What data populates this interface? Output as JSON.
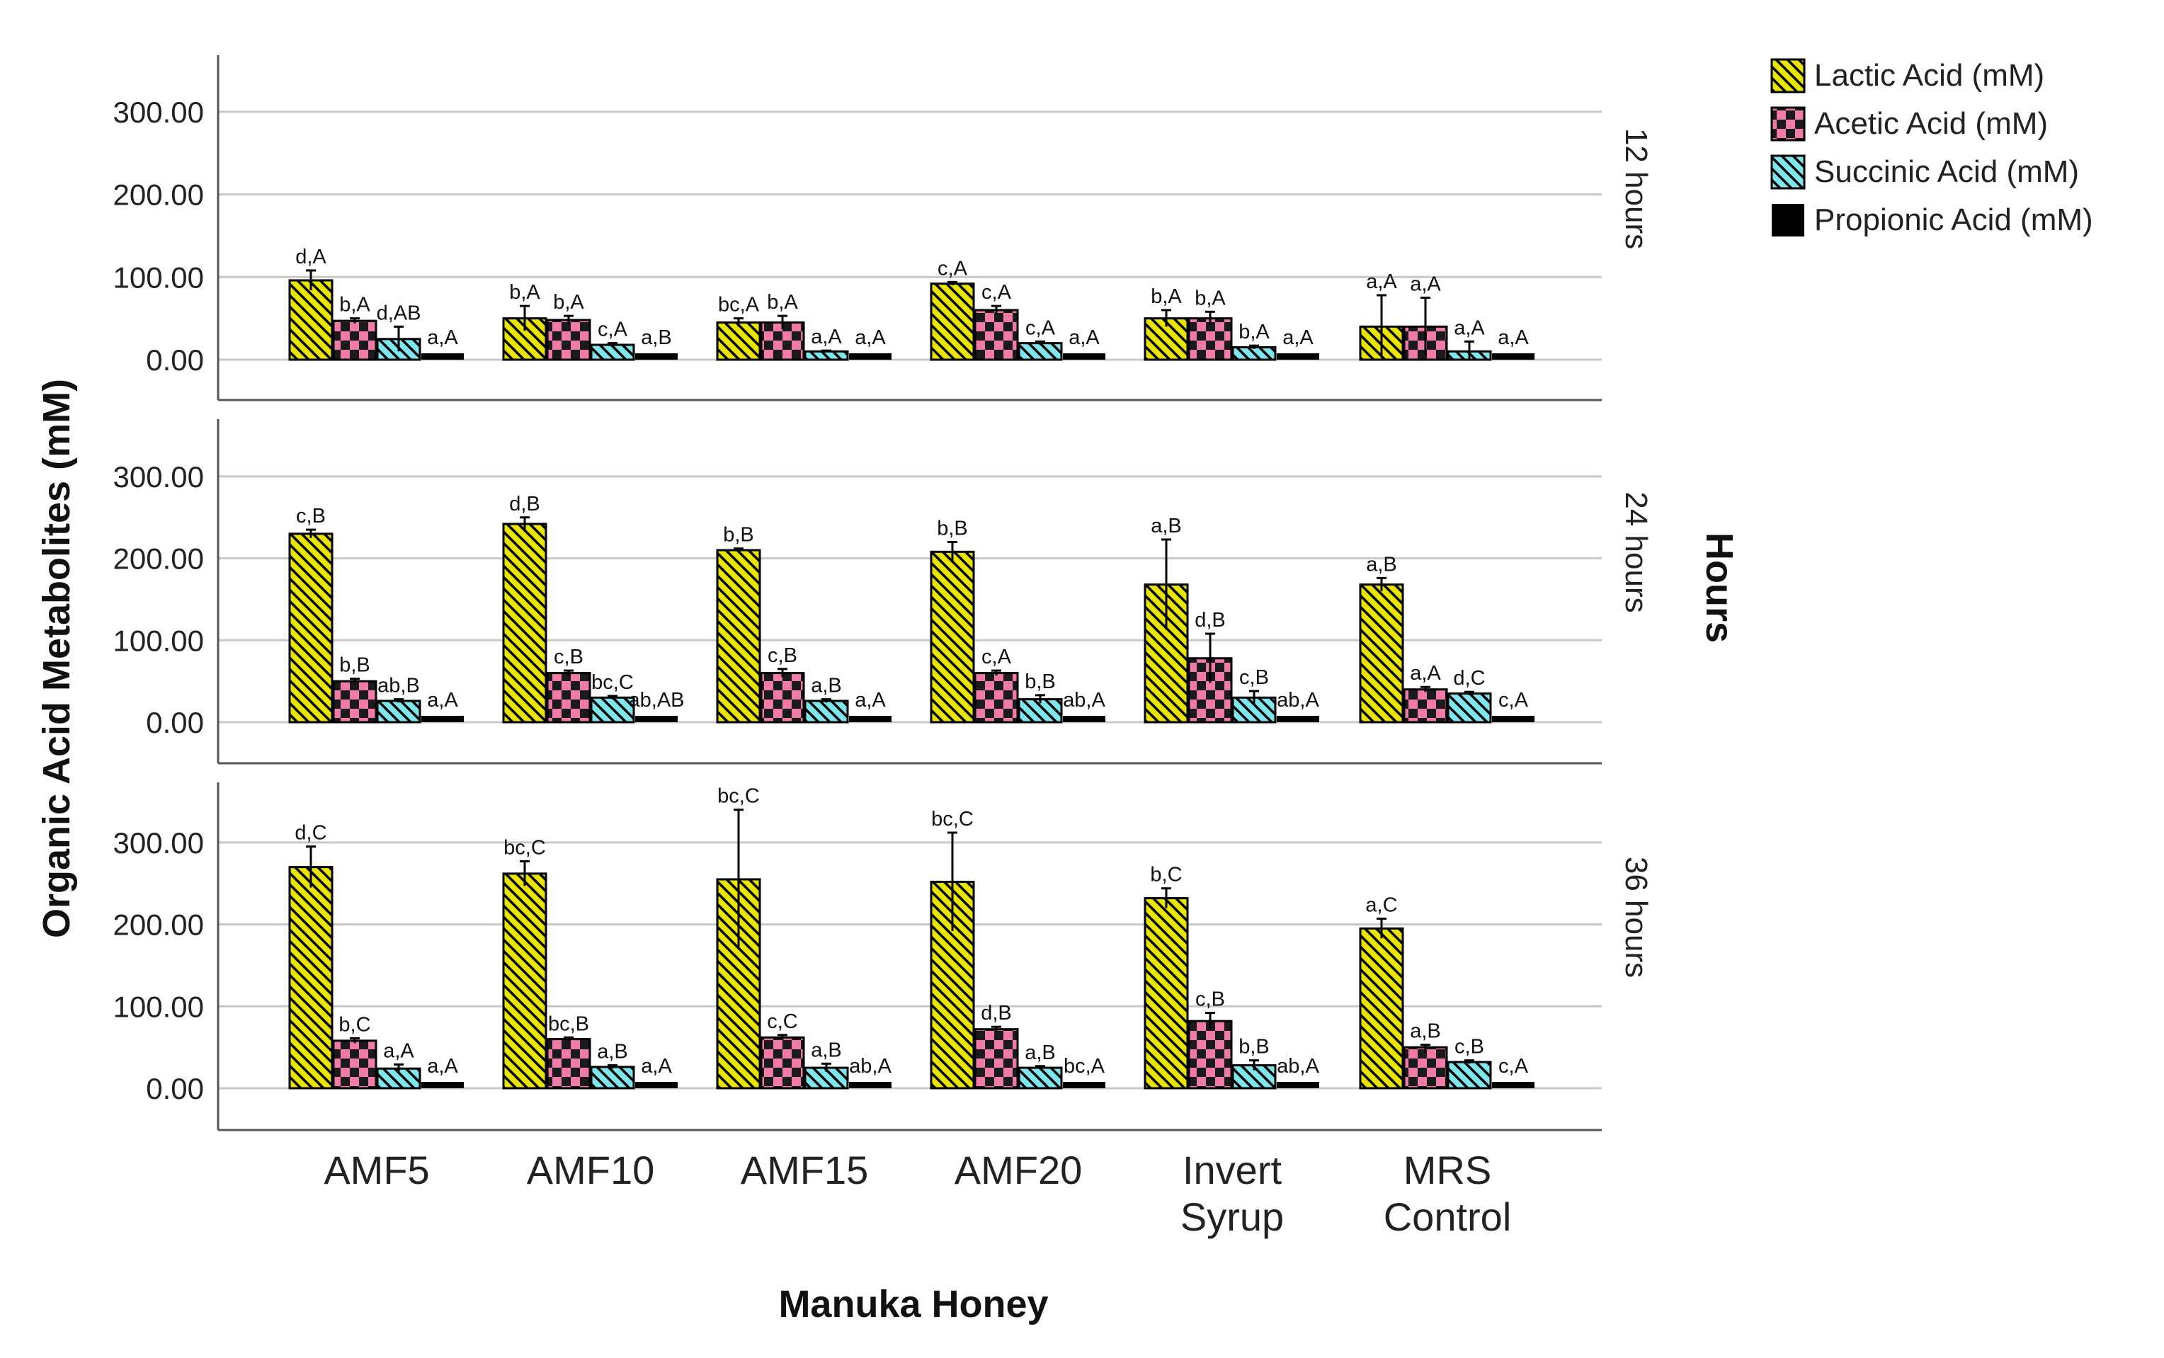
{
  "chart_data": {
    "type": "bar",
    "title": "",
    "xlabel": "Manuka Honey",
    "ylabel": "Organic Acid Metabolites (mM)",
    "facet_label": "Hours",
    "ylim": [
      -50,
      370
    ],
    "yticks": [
      0,
      100,
      200,
      300
    ],
    "ytick_labels": [
      "0.00",
      "100.00",
      "200.00",
      "300.00"
    ],
    "grid": true,
    "legend_position": "top-right",
    "categories": [
      {
        "line1": "AMF5",
        "line2": ""
      },
      {
        "line1": "AMF10",
        "line2": ""
      },
      {
        "line1": "AMF15",
        "line2": ""
      },
      {
        "line1": "AMF20",
        "line2": ""
      },
      {
        "line1": "Invert",
        "line2": "Syrup"
      },
      {
        "line1": "MRS",
        "line2": "Control"
      }
    ],
    "series": [
      {
        "name": "Lactic Acid (mM)",
        "pattern": "diag",
        "color": "#e8e400"
      },
      {
        "name": "Acetic Acid (mM)",
        "pattern": "check",
        "color": "#f07aa8"
      },
      {
        "name": "Succinic Acid (mM)",
        "pattern": "diag-light",
        "color": "#7fe6ee"
      },
      {
        "name": "Propionic Acid (mM)",
        "pattern": "solid",
        "color": "#000000"
      }
    ],
    "panels": [
      {
        "label": "12 hours",
        "values": [
          [
            96,
            47,
            25,
            2
          ],
          [
            50,
            48,
            18,
            2
          ],
          [
            45,
            45,
            10,
            2
          ],
          [
            92,
            60,
            20,
            2
          ],
          [
            50,
            50,
            15,
            2
          ],
          [
            40,
            40,
            10,
            3
          ]
        ],
        "errors": [
          [
            12,
            3,
            15,
            1
          ],
          [
            15,
            5,
            2,
            1
          ],
          [
            5,
            8,
            1,
            1
          ],
          [
            2,
            5,
            2,
            1
          ],
          [
            10,
            8,
            2,
            1
          ],
          [
            38,
            35,
            12,
            1
          ]
        ],
        "letters": [
          [
            "d,A",
            "b,A",
            "d,AB",
            "a,A"
          ],
          [
            "b,A",
            "b,A",
            "c,A",
            "a,B"
          ],
          [
            "bc,A",
            "b,A",
            "a,A",
            "a,A"
          ],
          [
            "c,A",
            "c,A",
            "c,A",
            "a,A"
          ],
          [
            "b,A",
            "b,A",
            "b,A",
            "a,A"
          ],
          [
            "a,A",
            "a,A",
            "a,A",
            "a,A"
          ]
        ]
      },
      {
        "label": "24 hours",
        "values": [
          [
            230,
            50,
            26,
            2
          ],
          [
            242,
            60,
            30,
            2
          ],
          [
            210,
            60,
            26,
            2
          ],
          [
            208,
            60,
            28,
            2
          ],
          [
            168,
            78,
            30,
            2
          ],
          [
            168,
            40,
            35,
            3
          ]
        ],
        "errors": [
          [
            5,
            3,
            2,
            1
          ],
          [
            8,
            3,
            2,
            1
          ],
          [
            2,
            5,
            2,
            1
          ],
          [
            12,
            3,
            5,
            1
          ],
          [
            55,
            30,
            8,
            1
          ],
          [
            8,
            3,
            2,
            1
          ]
        ],
        "letters": [
          [
            "c,B",
            "b,B",
            "ab,B",
            "a,A"
          ],
          [
            "d,B",
            "c,B",
            "bc,C",
            "ab,AB"
          ],
          [
            "b,B",
            "c,B",
            "a,B",
            "a,A"
          ],
          [
            "b,B",
            "c,A",
            "b,B",
            "ab,A"
          ],
          [
            "a,B",
            "d,B",
            "c,B",
            "ab,A"
          ],
          [
            "a,B",
            "a,A",
            "d,C",
            "c,A"
          ]
        ]
      },
      {
        "label": "36 hours",
        "values": [
          [
            270,
            58,
            24,
            2
          ],
          [
            262,
            60,
            26,
            2
          ],
          [
            255,
            62,
            25,
            2
          ],
          [
            252,
            72,
            25,
            2
          ],
          [
            232,
            82,
            28,
            2
          ],
          [
            195,
            50,
            32,
            3
          ]
        ],
        "errors": [
          [
            25,
            3,
            5,
            1
          ],
          [
            15,
            2,
            2,
            1
          ],
          [
            85,
            3,
            5,
            1
          ],
          [
            60,
            3,
            2,
            1
          ],
          [
            12,
            10,
            6,
            1
          ],
          [
            12,
            3,
            2,
            1
          ]
        ],
        "letters": [
          [
            "d,C",
            "b,C",
            "a,A",
            "a,A"
          ],
          [
            "bc,C",
            "bc,B",
            "a,B",
            "a,A"
          ],
          [
            "bc,C",
            "c,C",
            "a,B",
            "ab,A"
          ],
          [
            "bc,C",
            "d,B",
            "a,B",
            "bc,A"
          ],
          [
            "b,C",
            "c,B",
            "b,B",
            "ab,A"
          ],
          [
            "a,C",
            "a,B",
            "c,B",
            "c,A"
          ]
        ]
      }
    ]
  }
}
